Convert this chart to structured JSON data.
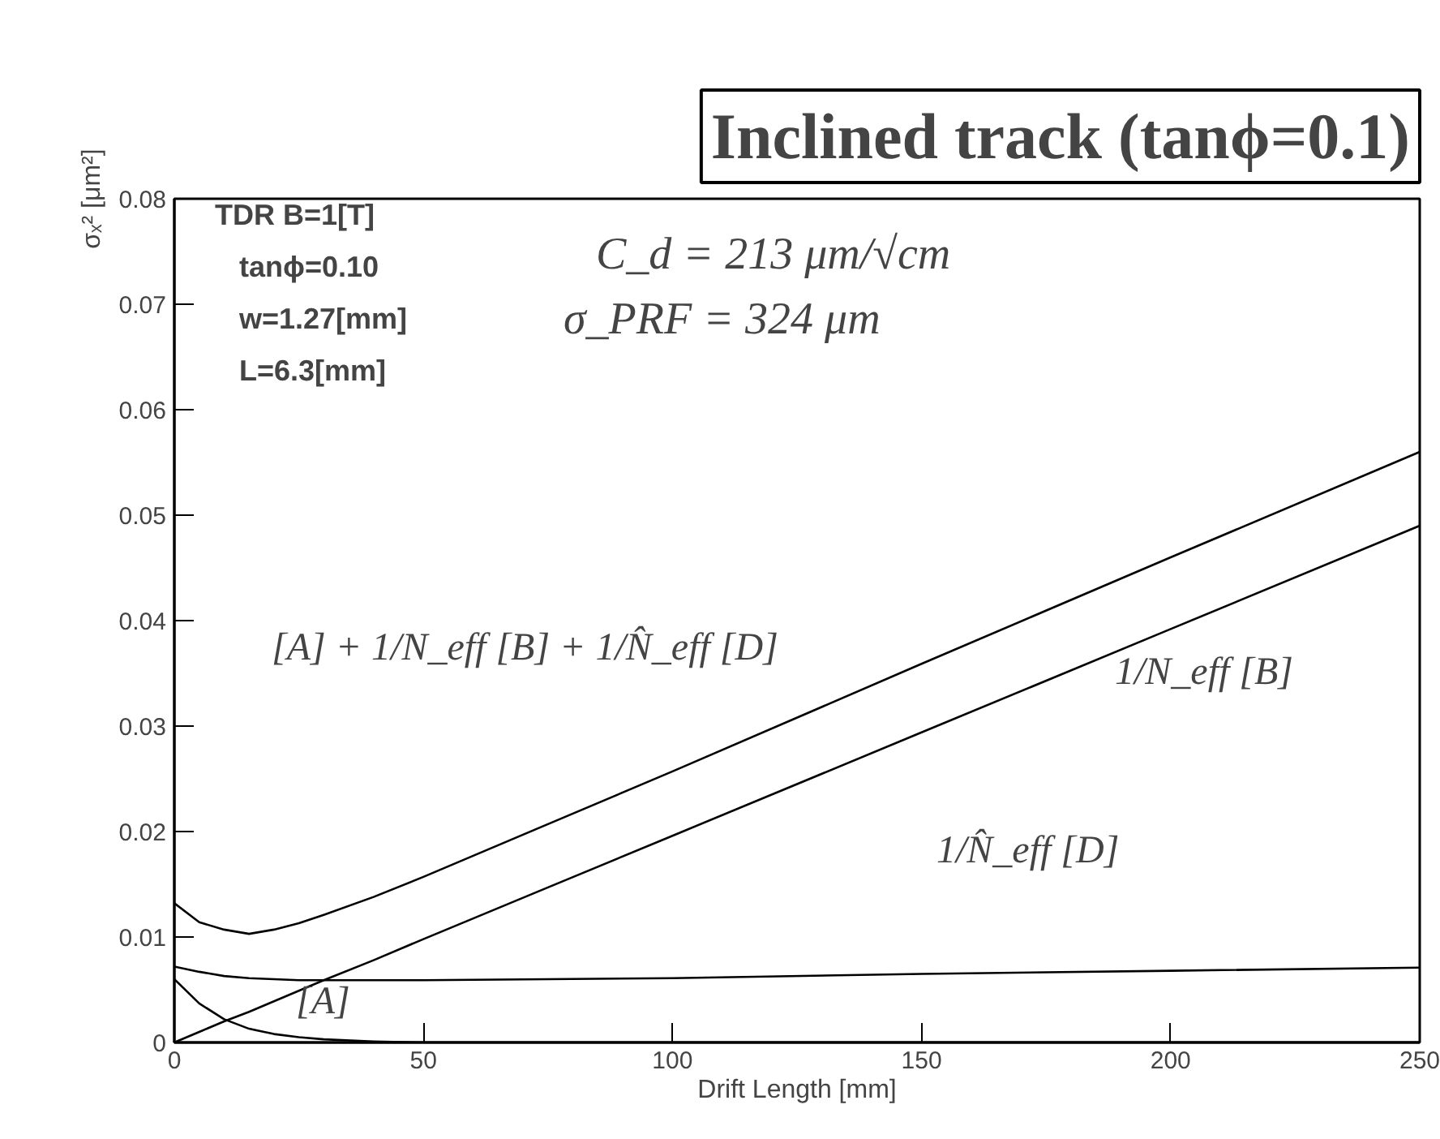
{
  "chart_data": {
    "type": "line",
    "title": "Inclined track (tanϕ=0.1)",
    "xlabel": "Drift Length [mm]",
    "ylabel": "σₓ² [μm²]",
    "x": [
      0,
      5,
      10,
      15,
      20,
      25,
      30,
      40,
      50,
      75,
      100,
      150,
      200,
      250
    ],
    "series": [
      {
        "color": "#000000",
        "values": [
          0.0132,
          0.0114,
          0.0107,
          0.0103,
          0.0107,
          0.0113,
          0.0121,
          0.0138,
          0.0157,
          0.0207,
          0.0257,
          0.0359,
          0.046,
          0.056
        ]
      },
      {
        "color": "#000000",
        "values": [
          0,
          0.001,
          0.002,
          0.0029,
          0.0039,
          0.0049,
          0.0059,
          0.0078,
          0.0098,
          0.0147,
          0.0196,
          0.0294,
          0.0392,
          0.049
        ]
      },
      {
        "color": "#000000",
        "values": [
          0.0072,
          0.0067,
          0.0063,
          0.0061,
          0.006,
          0.0059,
          0.0059,
          0.0059,
          0.0059,
          0.006,
          0.0061,
          0.0065,
          0.0068,
          0.0071
        ]
      },
      {
        "color": "#000000",
        "values": [
          0.006,
          0.0037,
          0.0022,
          0.0013,
          0.0008,
          0.0005,
          0.0003,
          0.0001,
          0,
          0,
          0,
          0,
          0,
          0
        ]
      }
    ],
    "xlim": [
      0,
      250
    ],
    "xticks": [
      0,
      50,
      100,
      150,
      200,
      250
    ],
    "ylim": [
      0,
      0.08
    ],
    "yticks": [
      0,
      0.01,
      0.02,
      0.03,
      0.04,
      0.05,
      0.06,
      0.07,
      0.08
    ],
    "grid": false,
    "marker": "none",
    "line_style": "solid",
    "annotations": [
      "TDR B=1[T]",
      "tanϕ=0.10",
      "w=1.27[mm]",
      "L=6.3[mm]",
      "C_d = 213 μm/√cm",
      "σ_PRF = 324 μm",
      "[A] + 1/N_eff [B] + 1/N̂_eff [D]",
      "1/N_eff [B]",
      "1/N̂_eff [D]",
      "[A]"
    ]
  }
}
